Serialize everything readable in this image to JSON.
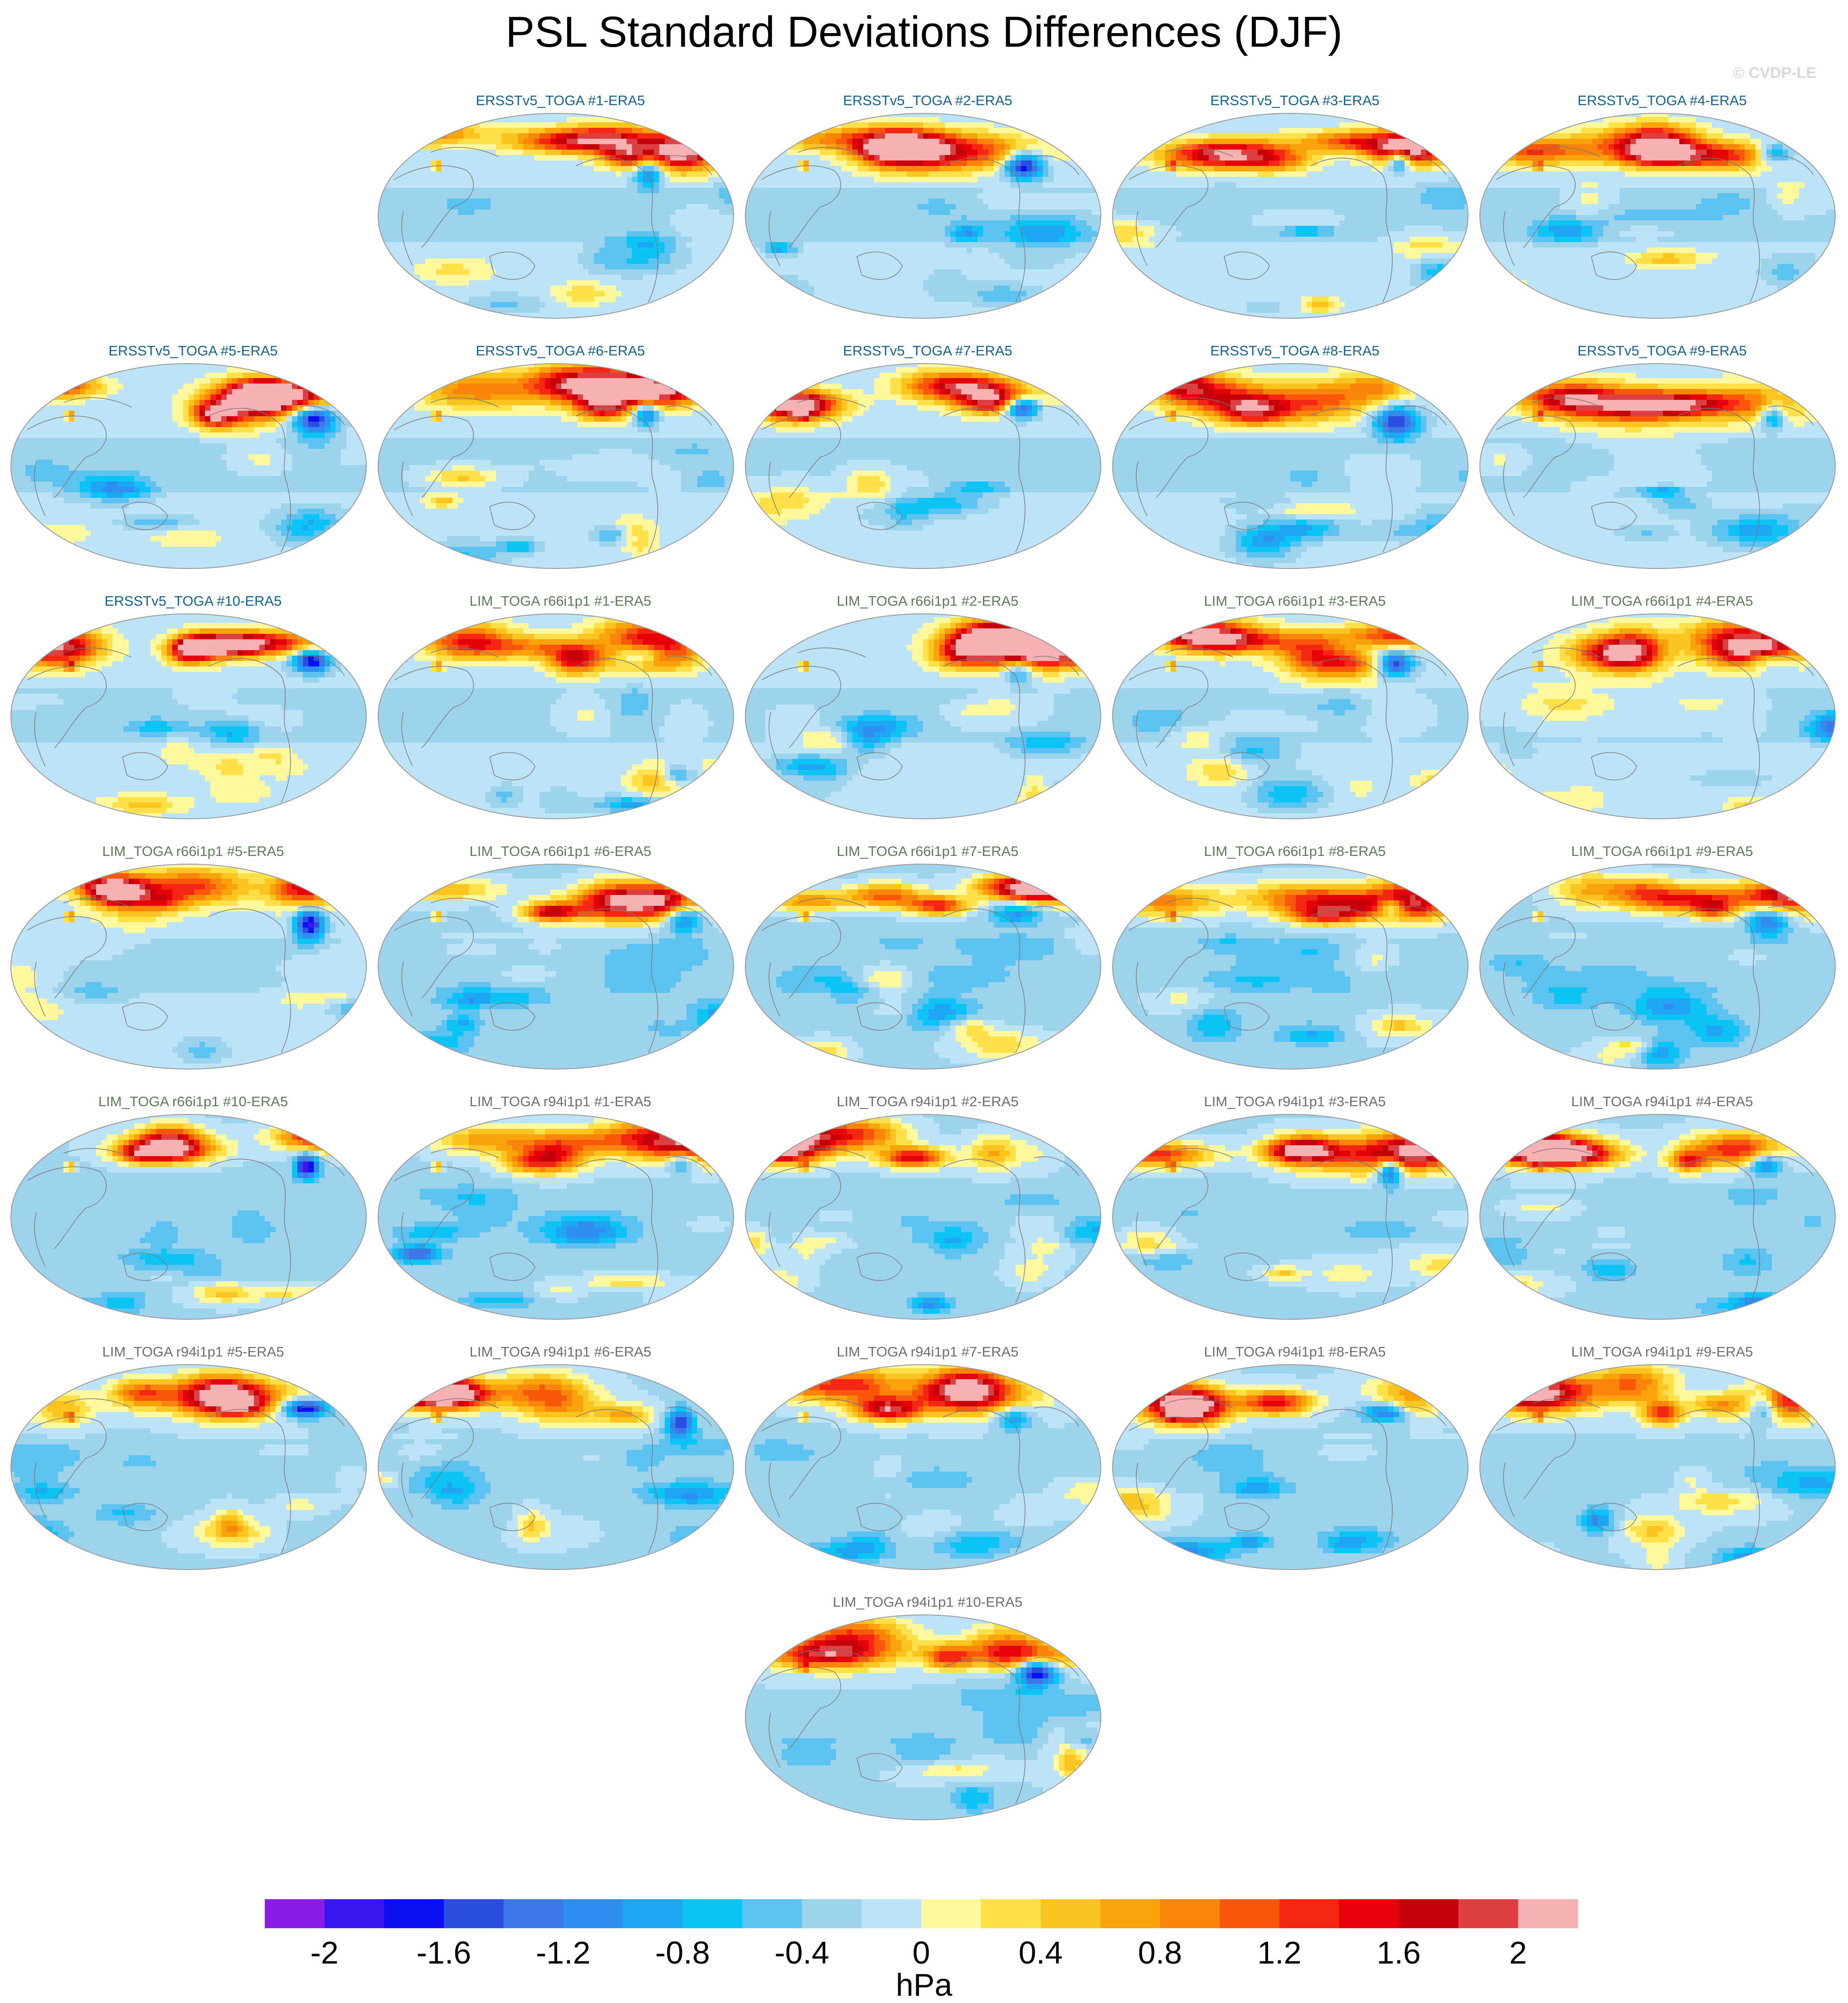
{
  "title": "PSL Standard Deviations Differences (DJF)",
  "credit": "© CVDP-LE",
  "chart_data": {
    "type": "heatmap",
    "title": "PSL Standard Deviations Differences (DJF)",
    "map_projection": "global ellipse (Robinson-like), Pacific-centered",
    "panels": [
      {
        "label": "ERSSTv5_TOGA #1-ERA5",
        "group": "ersst",
        "seed": 1
      },
      {
        "label": "ERSSTv5_TOGA #2-ERA5",
        "group": "ersst",
        "seed": 2
      },
      {
        "label": "ERSSTv5_TOGA #3-ERA5",
        "group": "ersst",
        "seed": 3
      },
      {
        "label": "ERSSTv5_TOGA #4-ERA5",
        "group": "ersst",
        "seed": 4
      },
      {
        "label": "ERSSTv5_TOGA #5-ERA5",
        "group": "ersst",
        "seed": 5
      },
      {
        "label": "ERSSTv5_TOGA #6-ERA5",
        "group": "ersst",
        "seed": 6
      },
      {
        "label": "ERSSTv5_TOGA #7-ERA5",
        "group": "ersst",
        "seed": 7
      },
      {
        "label": "ERSSTv5_TOGA #8-ERA5",
        "group": "ersst",
        "seed": 8
      },
      {
        "label": "ERSSTv5_TOGA #9-ERA5",
        "group": "ersst",
        "seed": 9
      },
      {
        "label": "ERSSTv5_TOGA #10-ERA5",
        "group": "ersst",
        "seed": 10
      },
      {
        "label": "LIM_TOGA r66i1p1 #1-ERA5",
        "group": "lim66",
        "seed": 11
      },
      {
        "label": "LIM_TOGA r66i1p1 #2-ERA5",
        "group": "lim66",
        "seed": 12
      },
      {
        "label": "LIM_TOGA r66i1p1 #3-ERA5",
        "group": "lim66",
        "seed": 13
      },
      {
        "label": "LIM_TOGA r66i1p1 #4-ERA5",
        "group": "lim66",
        "seed": 14
      },
      {
        "label": "LIM_TOGA r66i1p1 #5-ERA5",
        "group": "lim66",
        "seed": 15
      },
      {
        "label": "LIM_TOGA r66i1p1 #6-ERA5",
        "group": "lim66",
        "seed": 16
      },
      {
        "label": "LIM_TOGA r66i1p1 #7-ERA5",
        "group": "lim66",
        "seed": 17
      },
      {
        "label": "LIM_TOGA r66i1p1 #8-ERA5",
        "group": "lim66",
        "seed": 18
      },
      {
        "label": "LIM_TOGA r66i1p1 #9-ERA5",
        "group": "lim66",
        "seed": 19
      },
      {
        "label": "LIM_TOGA r66i1p1 #10-ERA5",
        "group": "lim66",
        "seed": 20
      },
      {
        "label": "LIM_TOGA r94i1p1 #1-ERA5",
        "group": "lim94",
        "seed": 21
      },
      {
        "label": "LIM_TOGA r94i1p1 #2-ERA5",
        "group": "lim94",
        "seed": 22
      },
      {
        "label": "LIM_TOGA r94i1p1 #3-ERA5",
        "group": "lim94",
        "seed": 23
      },
      {
        "label": "LIM_TOGA r94i1p1 #4-ERA5",
        "group": "lim94",
        "seed": 24
      },
      {
        "label": "LIM_TOGA r94i1p1 #5-ERA5",
        "group": "lim94",
        "seed": 25
      },
      {
        "label": "LIM_TOGA r94i1p1 #6-ERA5",
        "group": "lim94",
        "seed": 26
      },
      {
        "label": "LIM_TOGA r94i1p1 #7-ERA5",
        "group": "lim94",
        "seed": 27
      },
      {
        "label": "LIM_TOGA r94i1p1 #8-ERA5",
        "group": "lim94",
        "seed": 28
      },
      {
        "label": "LIM_TOGA r94i1p1 #9-ERA5",
        "group": "lim94",
        "seed": 29
      },
      {
        "label": "LIM_TOGA r94i1p1 #10-ERA5",
        "group": "lim94",
        "seed": 30
      }
    ],
    "colorbar": {
      "unit": "hPa",
      "range": [
        -2.2,
        2.2
      ],
      "step": 0.2,
      "tick_labels": [
        "-2",
        "-1.6",
        "-1.2",
        "-0.8",
        "-0.4",
        "0",
        "0.4",
        "0.8",
        "1.2",
        "1.6",
        "2"
      ],
      "tick_values": [
        -2,
        -1.6,
        -1.2,
        -0.8,
        -0.4,
        0,
        0.4,
        0.8,
        1.2,
        1.6,
        2
      ],
      "colors": [
        "#8a1ee8",
        "#3c16f0",
        "#0b12f2",
        "#2a4fe0",
        "#3c78e6",
        "#2e8ff0",
        "#1ea6f2",
        "#0bc3f5",
        "#5cc3f0",
        "#9ed3ee",
        "#bde3f6",
        "#fff89e",
        "#ffe04a",
        "#fbc41e",
        "#f9a30a",
        "#fb840a",
        "#f9570a",
        "#f52613",
        "#e6000a",
        "#c5000a",
        "#dc4040",
        "#f7b0b3"
      ]
    }
  }
}
